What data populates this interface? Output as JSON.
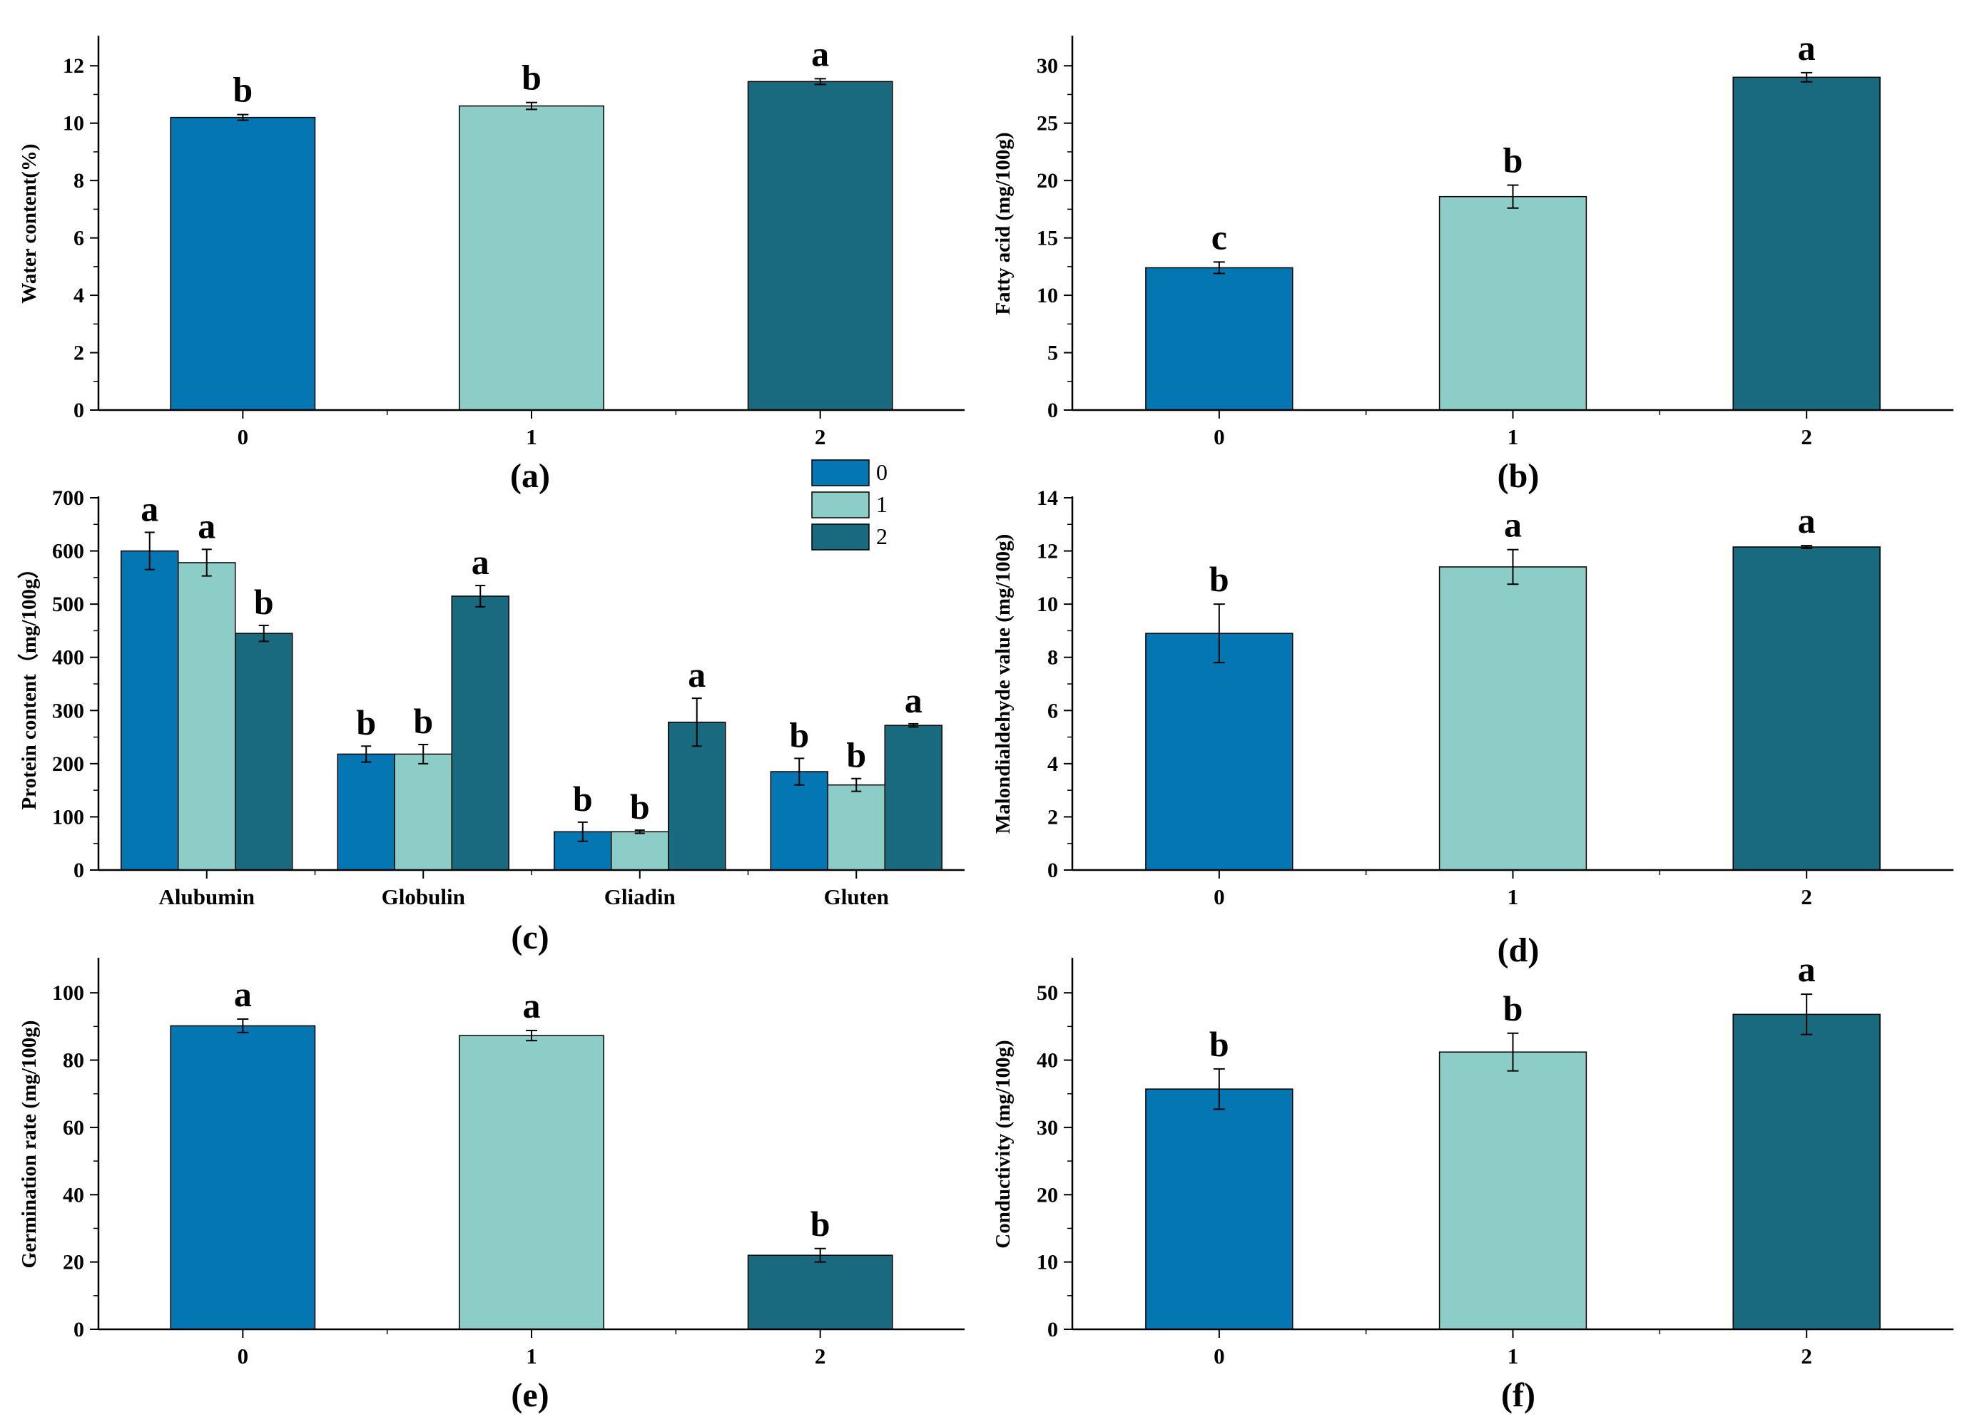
{
  "colors": {
    "s0": "#0476b1",
    "s1": "#8ccdc7",
    "s2": "#196a7e"
  },
  "legend": [
    "0",
    "1",
    "2"
  ],
  "chart_data": [
    {
      "id": "a",
      "type": "bar",
      "panel_label": "(a)",
      "ylabel": "Water content(%)",
      "xlabel": "",
      "ylim": [
        0,
        13
      ],
      "yticks": [
        0,
        2,
        4,
        6,
        8,
        10,
        12
      ],
      "categories": [
        "0",
        "1",
        "2"
      ],
      "values": [
        10.2,
        10.6,
        11.45
      ],
      "errors": [
        0.1,
        0.12,
        0.1
      ],
      "sig": [
        "b",
        "b",
        "a"
      ],
      "grouped": false
    },
    {
      "id": "b",
      "type": "bar",
      "panel_label": "(b)",
      "ylabel": "Fatty acid (mg/100g)",
      "xlabel": "",
      "ylim": [
        0,
        32.5
      ],
      "yticks": [
        0,
        5,
        10,
        15,
        20,
        25,
        30
      ],
      "categories": [
        "0",
        "1",
        "2"
      ],
      "values": [
        12.4,
        18.6,
        29.0
      ],
      "errors": [
        0.5,
        1.0,
        0.4
      ],
      "sig": [
        "c",
        "b",
        "a"
      ],
      "grouped": false
    },
    {
      "id": "c",
      "type": "bar",
      "panel_label": "(c)",
      "ylabel": "Protein content（mg/100g）",
      "xlabel": "",
      "ylim": [
        0,
        700
      ],
      "yticks": [
        0,
        100,
        200,
        300,
        400,
        500,
        600,
        700
      ],
      "categories": [
        "Alubumin",
        "Globulin",
        "Gliadin",
        "Gluten"
      ],
      "series": [
        {
          "name": "0",
          "values": [
            600,
            218,
            72,
            185
          ],
          "errors": [
            35,
            15,
            18,
            25
          ],
          "sig": [
            "a",
            "b",
            "b",
            "b"
          ]
        },
        {
          "name": "1",
          "values": [
            578,
            218,
            72,
            160
          ],
          "errors": [
            25,
            18,
            3,
            12
          ],
          "sig": [
            "a",
            "b",
            "b",
            "b"
          ]
        },
        {
          "name": "2",
          "values": [
            445,
            515,
            278,
            272
          ],
          "errors": [
            15,
            20,
            45,
            3
          ],
          "sig": [
            "b",
            "a",
            "a",
            "a"
          ]
        }
      ],
      "grouped": true
    },
    {
      "id": "d",
      "type": "bar",
      "panel_label": "(d)",
      "ylabel": "Malondialdehyde value (mg/100g)",
      "xlabel": "",
      "ylim": [
        0,
        14
      ],
      "yticks": [
        0,
        2,
        4,
        6,
        8,
        10,
        12,
        14
      ],
      "categories": [
        "0",
        "1",
        "2"
      ],
      "values": [
        8.9,
        11.4,
        12.15
      ],
      "errors": [
        1.1,
        0.65,
        0.05
      ],
      "sig": [
        "b",
        "a",
        "a"
      ],
      "grouped": false
    },
    {
      "id": "e",
      "type": "bar",
      "panel_label": "(e)",
      "ylabel": "Germination rate (mg/100g)",
      "xlabel": "",
      "ylim": [
        0,
        110
      ],
      "yticks": [
        0,
        20,
        40,
        60,
        80,
        100
      ],
      "categories": [
        "0",
        "1",
        "2"
      ],
      "values": [
        90.2,
        87.3,
        22.0
      ],
      "errors": [
        2.0,
        1.5,
        2.0
      ],
      "sig": [
        "a",
        "a",
        "b"
      ],
      "grouped": false
    },
    {
      "id": "f",
      "type": "bar",
      "panel_label": "(f)",
      "ylabel": "Conductivity (mg/100g)",
      "xlabel": "",
      "ylim": [
        0,
        55
      ],
      "yticks": [
        0,
        10,
        20,
        30,
        40,
        50
      ],
      "categories": [
        "0",
        "1",
        "2"
      ],
      "values": [
        35.7,
        41.2,
        46.8
      ],
      "errors": [
        3.0,
        2.8,
        3.0
      ],
      "sig": [
        "b",
        "b",
        "a"
      ],
      "grouped": false
    }
  ]
}
